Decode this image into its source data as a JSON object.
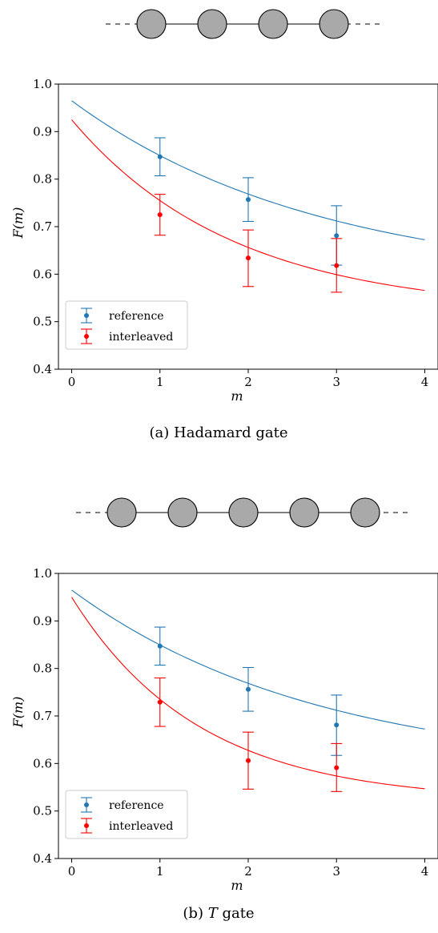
{
  "chart_data": [
    {
      "type": "scatter",
      "caption": "(a) Hadamard gate",
      "xlabel": "m",
      "ylabel": "F(m)",
      "xlim": [
        -0.15,
        4.15
      ],
      "ylim": [
        0.4,
        1.0
      ],
      "xticks": [
        "0",
        "1",
        "2",
        "3",
        "4"
      ],
      "yticks": [
        "0.4",
        "0.5",
        "0.6",
        "0.7",
        "0.8",
        "0.9",
        "1.0"
      ],
      "grid": false,
      "legend_position": "lower-left",
      "chain_nodes": 4,
      "series": [
        {
          "name": "reference",
          "color": "#1f77b4",
          "x": [
            1,
            2,
            3
          ],
          "y": [
            0.847,
            0.757,
            0.681
          ],
          "err_low": [
            0.807,
            0.711,
            0.619
          ],
          "err_high": [
            0.887,
            0.803,
            0.744
          ],
          "fit": {
            "a": 0.385,
            "p": 0.7,
            "b": 0.58,
            "x_range": [
              0,
              4
            ]
          }
        },
        {
          "name": "interleaved",
          "color": "#ff0000",
          "x": [
            1,
            2,
            3
          ],
          "y": [
            0.725,
            0.634,
            0.618
          ],
          "err_low": [
            0.682,
            0.574,
            0.562
          ],
          "err_high": [
            0.768,
            0.693,
            0.675
          ],
          "fit": {
            "a": 0.405,
            "p": 0.58,
            "b": 0.52,
            "x_range": [
              0,
              4
            ]
          }
        }
      ]
    },
    {
      "type": "scatter",
      "caption": "(b) T gate",
      "caption_italic_part": "T",
      "xlabel": "m",
      "ylabel": "F(m)",
      "xlim": [
        -0.15,
        4.15
      ],
      "ylim": [
        0.4,
        1.0
      ],
      "xticks": [
        "0",
        "1",
        "2",
        "3",
        "4"
      ],
      "yticks": [
        "0.4",
        "0.5",
        "0.6",
        "0.7",
        "0.8",
        "0.9",
        "1.0"
      ],
      "grid": false,
      "legend_position": "lower-left",
      "chain_nodes": 5,
      "series": [
        {
          "name": "reference",
          "color": "#1f77b4",
          "x": [
            1,
            2,
            3
          ],
          "y": [
            0.847,
            0.756,
            0.681
          ],
          "err_low": [
            0.807,
            0.71,
            0.617
          ],
          "err_high": [
            0.887,
            0.802,
            0.744
          ],
          "fit": {
            "a": 0.385,
            "p": 0.7,
            "b": 0.58,
            "x_range": [
              0,
              4
            ]
          }
        },
        {
          "name": "interleaved",
          "color": "#ff0000",
          "x": [
            1,
            2,
            3
          ],
          "y": [
            0.729,
            0.606,
            0.591
          ],
          "err_low": [
            0.678,
            0.546,
            0.541
          ],
          "err_high": [
            0.78,
            0.666,
            0.642
          ],
          "fit": {
            "a": 0.43,
            "p": 0.5,
            "b": 0.52,
            "x_range": [
              0,
              4
            ]
          }
        }
      ]
    }
  ]
}
